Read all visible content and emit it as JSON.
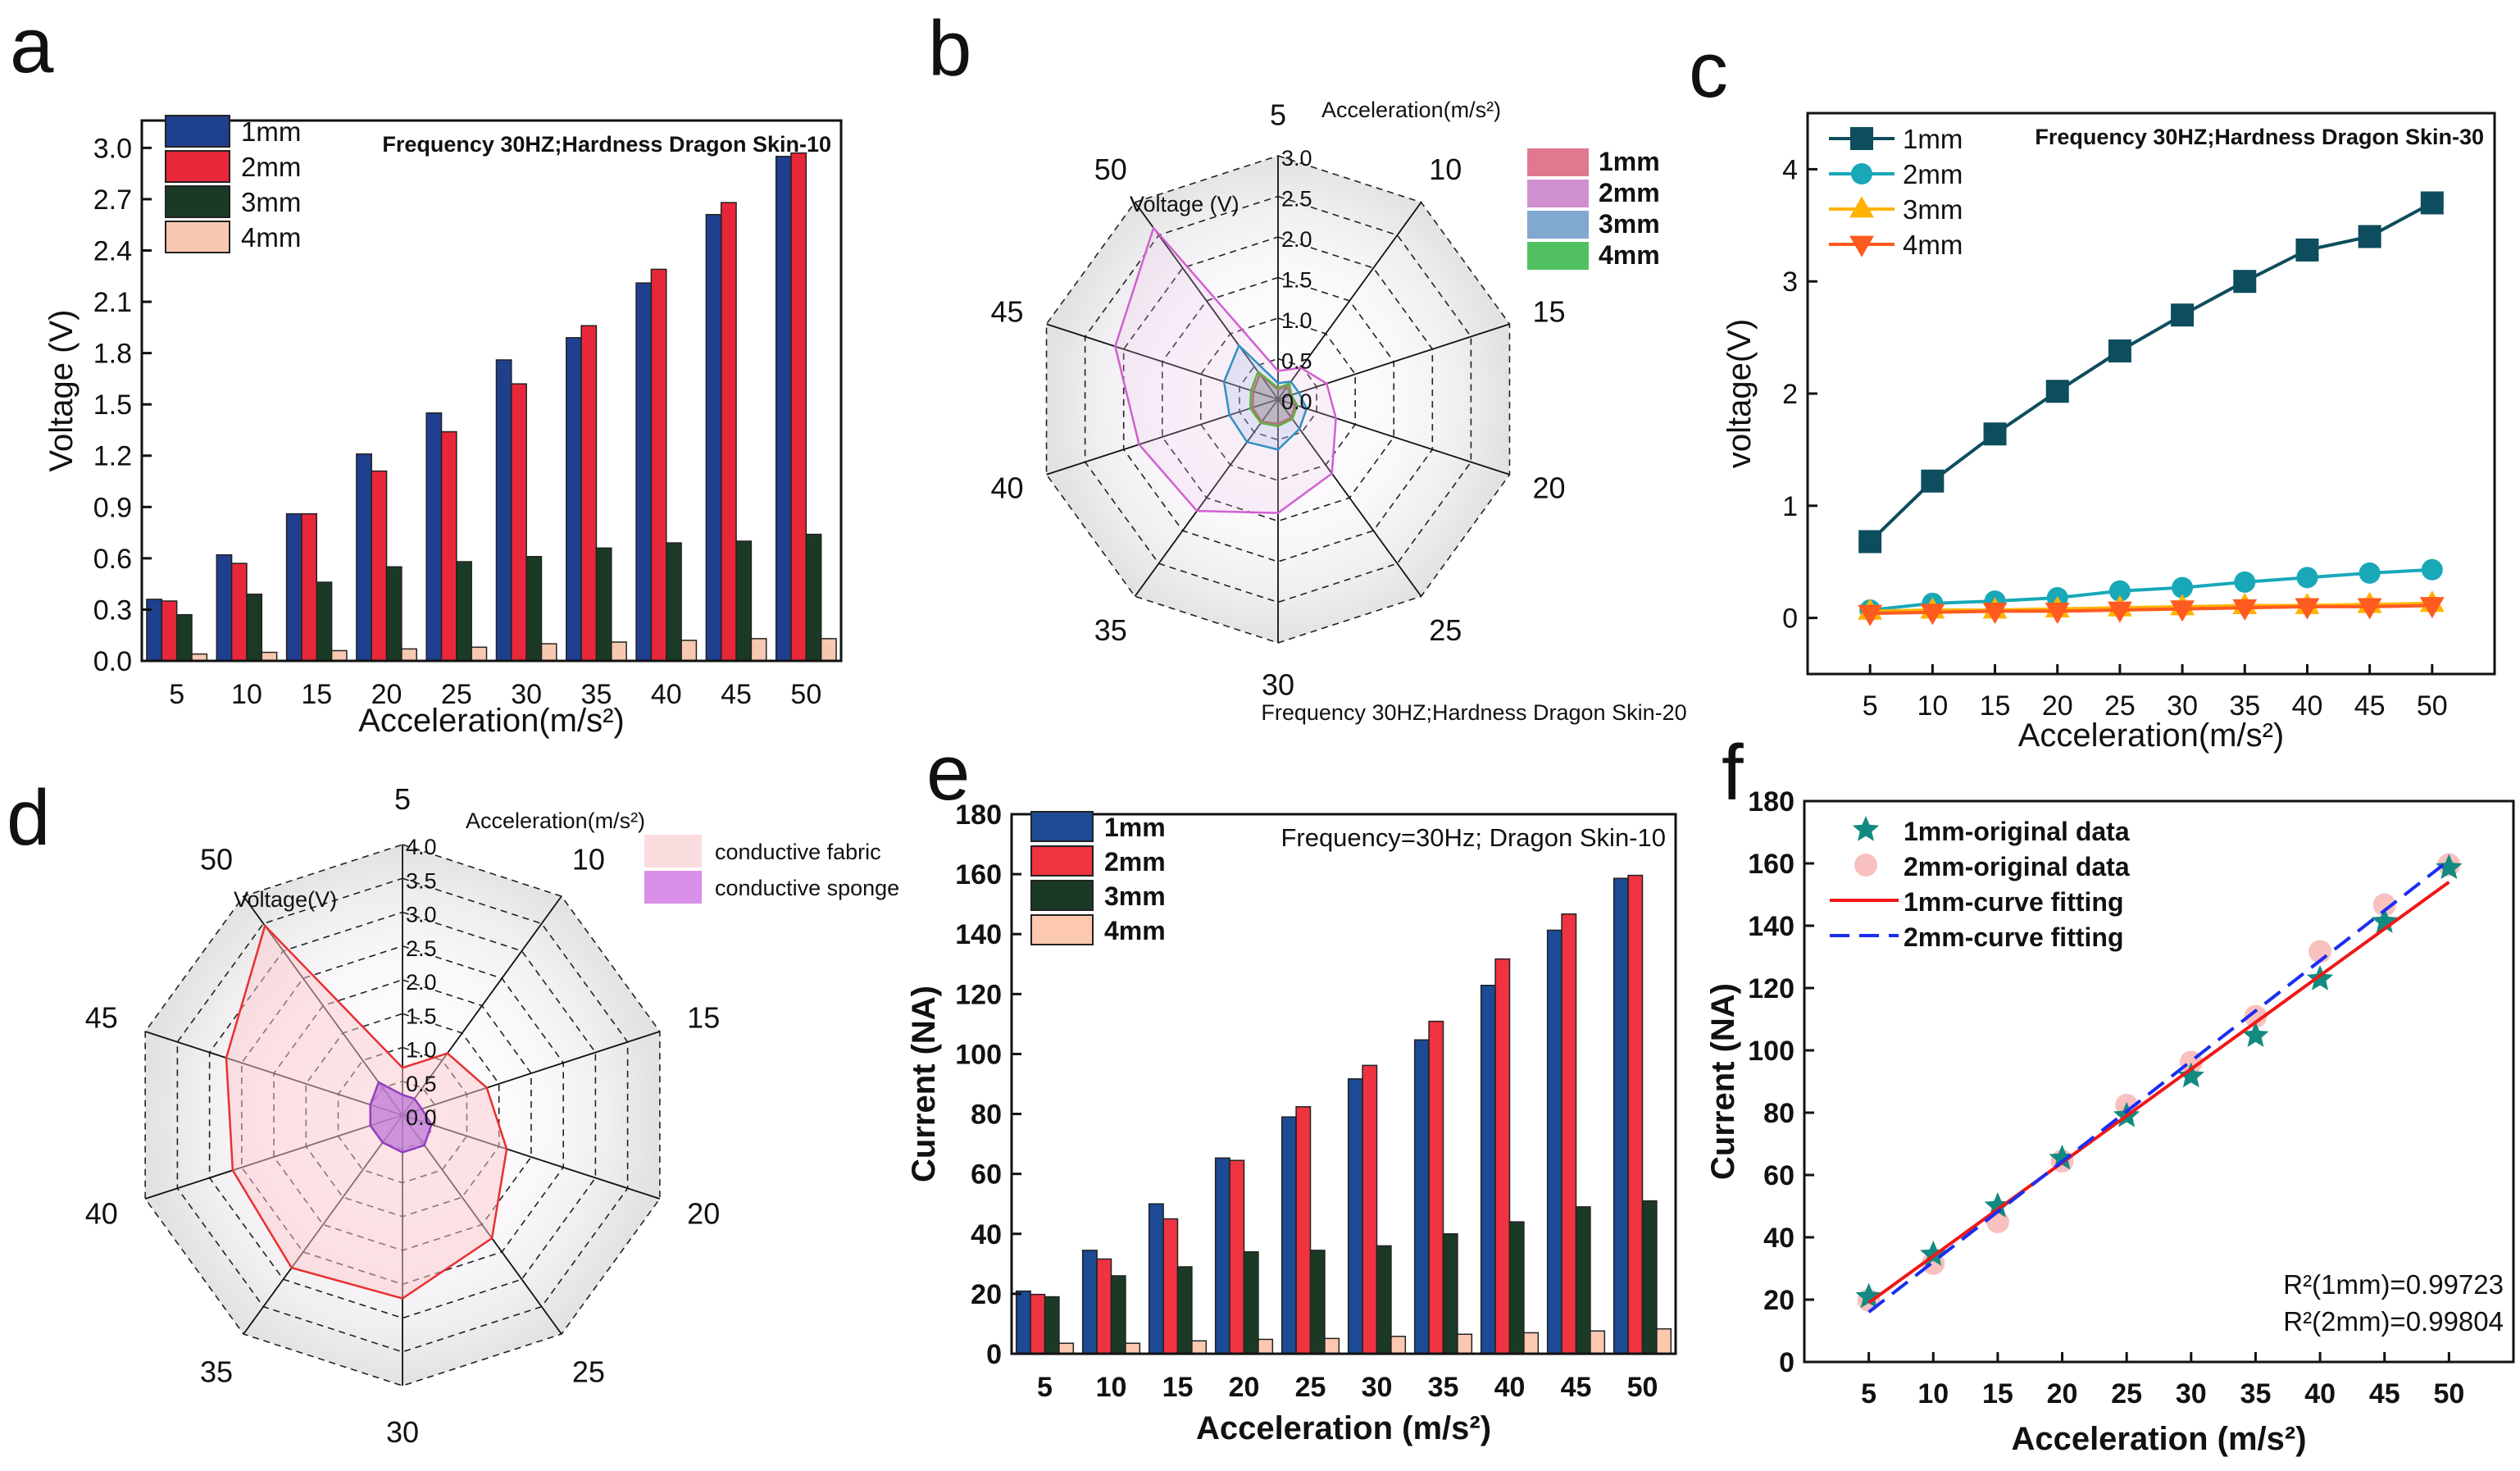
{
  "chart_data": [
    {
      "panel": "a",
      "type": "bar",
      "annotation": "Frequency 30HZ;Hardness Dragon Skin-10",
      "xlabel": "Acceleration(m/s²)",
      "ylabel": "Voltage (V)",
      "categories": [
        "5",
        "10",
        "15",
        "20",
        "25",
        "30",
        "35",
        "40",
        "45",
        "50"
      ],
      "ylim": [
        0,
        3.16
      ],
      "yticks": [
        "0.0",
        "0.3",
        "0.6",
        "0.9",
        "1.2",
        "1.5",
        "1.8",
        "2.1",
        "2.4",
        "2.7",
        "3.0"
      ],
      "grid": false,
      "legend": "top-left",
      "series": [
        {
          "name": "1mm",
          "color": "#1f3f8f",
          "values": [
            0.36,
            0.62,
            0.86,
            1.21,
            1.45,
            1.76,
            1.89,
            2.21,
            2.61,
            2.95
          ]
        },
        {
          "name": "2mm",
          "color": "#e8283a",
          "values": [
            0.35,
            0.57,
            0.86,
            1.11,
            1.34,
            1.62,
            1.96,
            2.29,
            2.68,
            2.97
          ]
        },
        {
          "name": "3mm",
          "color": "#1b3a26",
          "values": [
            0.27,
            0.39,
            0.46,
            0.55,
            0.58,
            0.61,
            0.66,
            0.69,
            0.7,
            0.74
          ]
        },
        {
          "name": "4mm",
          "color": "#f8c8b0",
          "values": [
            0.04,
            0.05,
            0.06,
            0.07,
            0.08,
            0.1,
            0.11,
            0.12,
            0.13,
            0.13
          ]
        }
      ]
    },
    {
      "panel": "b",
      "type": "radar",
      "caption": "Frequency 30HZ;Hardness Dragon Skin-20",
      "axis_title": "Acceleration(m/s²)",
      "value_title": "Voltage (V)",
      "categories": [
        "5",
        "10",
        "15",
        "20",
        "25",
        "30",
        "35",
        "40",
        "45",
        "50"
      ],
      "rmax": 3.0,
      "rticks": [
        "0.0",
        "0.5",
        "1.0",
        "1.5",
        "2.0",
        "2.5",
        "3.0"
      ],
      "legend": "top-right",
      "series": [
        {
          "name": "1mm",
          "color": "#e07890",
          "stroke": "#e04040",
          "fill": "rgba(224,120,144,0.15)",
          "values": [
            0.12,
            0.2,
            0.15,
            0.22,
            0.28,
            0.3,
            0.34,
            0.33,
            0.32,
            0.38
          ]
        },
        {
          "name": "2mm",
          "color": "#d090d0",
          "stroke": "#d060d0",
          "fill": "rgba(230,190,230,0.22)",
          "values": [
            0.35,
            0.48,
            0.63,
            0.75,
            1.13,
            1.4,
            1.7,
            1.8,
            2.11,
            2.61
          ]
        },
        {
          "name": "3mm",
          "color": "#80a8d0",
          "stroke": "#3090c0",
          "fill": "rgba(150,180,230,0.22)",
          "values": [
            0.2,
            0.27,
            0.27,
            0.37,
            0.45,
            0.62,
            0.65,
            0.63,
            0.7,
            0.82
          ]
        },
        {
          "name": "4mm",
          "color": "#50c060",
          "stroke": "#60b040",
          "fill": "rgba(120,120,120,0.35)",
          "values": [
            0.14,
            0.24,
            0.17,
            0.25,
            0.3,
            0.33,
            0.36,
            0.36,
            0.35,
            0.42
          ]
        }
      ]
    },
    {
      "panel": "c",
      "type": "line",
      "annotation": "Frequency 30HZ;Hardness Dragon Skin-30",
      "xlabel": "Acceleration(m/s²)",
      "ylabel": "voltage(V)",
      "x": [
        5,
        10,
        15,
        20,
        25,
        30,
        35,
        40,
        45,
        50
      ],
      "xlim": [
        0,
        55
      ],
      "ylim": [
        -0.5,
        4.5
      ],
      "yticks": [
        "0",
        "1",
        "2",
        "3",
        "4"
      ],
      "grid": false,
      "legend": "top-left",
      "series": [
        {
          "name": "1mm",
          "color": "#0d4d5e",
          "marker": "square",
          "values": [
            0.68,
            1.22,
            1.64,
            2.02,
            2.38,
            2.7,
            3.0,
            3.28,
            3.4,
            3.7
          ]
        },
        {
          "name": "2mm",
          "color": "#18a8b8",
          "marker": "circle",
          "values": [
            0.07,
            0.13,
            0.15,
            0.18,
            0.24,
            0.27,
            0.32,
            0.36,
            0.4,
            0.43
          ]
        },
        {
          "name": "3mm",
          "color": "#ffb300",
          "marker": "triangle-up",
          "values": [
            0.06,
            0.07,
            0.07,
            0.08,
            0.09,
            0.1,
            0.11,
            0.11,
            0.12,
            0.13
          ]
        },
        {
          "name": "4mm",
          "color": "#ff5a1f",
          "marker": "triangle-down",
          "values": [
            0.04,
            0.05,
            0.06,
            0.06,
            0.07,
            0.08,
            0.09,
            0.1,
            0.1,
            0.11
          ]
        }
      ]
    },
    {
      "panel": "d",
      "type": "radar",
      "axis_title": "Acceleration(m/s²)",
      "value_title": "Voltage(V)",
      "categories": [
        "5",
        "10",
        "15",
        "20",
        "25",
        "30",
        "35",
        "40",
        "45",
        "50"
      ],
      "rmax": 4.0,
      "rticks": [
        "0.0",
        "0.5",
        "1.0",
        "1.5",
        "2.0",
        "2.5",
        "3.0",
        "3.5",
        "4.0"
      ],
      "legend": "top-right",
      "series": [
        {
          "name": "conductive fabric",
          "color": "#fbdde0",
          "stroke": "#e83030",
          "fill": "rgba(251,200,206,0.5)",
          "values": [
            0.7,
            1.13,
            1.31,
            1.62,
            2.25,
            2.71,
            2.79,
            2.64,
            2.74,
            3.46
          ]
        },
        {
          "name": "conductive sponge",
          "color": "#d890e8",
          "stroke": "#9040c0",
          "fill": "rgba(190,120,215,0.75)",
          "values": [
            0.3,
            0.3,
            0.3,
            0.45,
            0.55,
            0.55,
            0.5,
            0.5,
            0.5,
            0.6
          ]
        }
      ]
    },
    {
      "panel": "e",
      "type": "bar",
      "annotation": "Frequency=30Hz; Dragon Skin-10",
      "xlabel": "Acceleration (m/s²)",
      "ylabel": "Current (NA)",
      "categories": [
        "5",
        "10",
        "15",
        "20",
        "25",
        "30",
        "35",
        "40",
        "45",
        "50"
      ],
      "ylim": [
        0,
        180
      ],
      "yticks": [
        "0",
        "20",
        "40",
        "60",
        "80",
        "100",
        "120",
        "140",
        "160",
        "180"
      ],
      "grid": false,
      "legend": "top-left",
      "series": [
        {
          "name": "1mm",
          "color": "#1c4a94",
          "values": [
            20.9,
            34.5,
            50,
            65.3,
            79,
            91.7,
            104.7,
            122.9,
            141.3,
            158.6
          ]
        },
        {
          "name": "2mm",
          "color": "#ef3340",
          "values": [
            19.8,
            31.6,
            45,
            64.5,
            82.4,
            96.2,
            110.9,
            131.7,
            146.7,
            159.6
          ]
        },
        {
          "name": "3mm",
          "color": "#1b3a26",
          "values": [
            19,
            26,
            29,
            34,
            34.5,
            36,
            40,
            44,
            49,
            51
          ]
        },
        {
          "name": "4mm",
          "color": "#fcc9b0",
          "values": [
            3.5,
            3.5,
            4.3,
            4.8,
            5.1,
            5.8,
            6.5,
            7,
            7.6,
            8.3
          ]
        }
      ]
    },
    {
      "panel": "f",
      "type": "scatter",
      "xlabel": "Acceleration (m/s²)",
      "ylabel": "Current (NA)",
      "x": [
        5,
        10,
        15,
        20,
        25,
        30,
        35,
        40,
        45,
        50
      ],
      "xlim": [
        0,
        55
      ],
      "ylim": [
        0,
        180
      ],
      "yticks": [
        "0",
        "20",
        "40",
        "60",
        "80",
        "100",
        "120",
        "140",
        "160",
        "180"
      ],
      "grid": false,
      "legend": "top-left",
      "annotations": [
        "R²(1mm)=0.99723",
        "R²(2mm)=0.99804"
      ],
      "series": [
        {
          "name": "1mm-original data",
          "color": "#138a80",
          "marker": "star",
          "values": [
            20.9,
            34.5,
            50,
            65.3,
            79,
            91.7,
            104.7,
            122.9,
            141.3,
            158.6
          ]
        },
        {
          "name": "2mm-original data",
          "color": "#f9c0c0",
          "marker": "circle",
          "values": [
            19.8,
            31.6,
            45,
            64.5,
            82.4,
            96.2,
            110.9,
            131.7,
            146.7,
            159.6
          ]
        }
      ],
      "fits": [
        {
          "name": "1mm-curve fitting",
          "color": "#f01818",
          "dash": false,
          "x": [
            5,
            50
          ],
          "y": [
            19,
            154
          ]
        },
        {
          "name": "2mm-curve fitting",
          "color": "#1a2ef0",
          "dash": true,
          "x": [
            5,
            50
          ],
          "y": [
            16,
            161
          ]
        }
      ]
    }
  ]
}
